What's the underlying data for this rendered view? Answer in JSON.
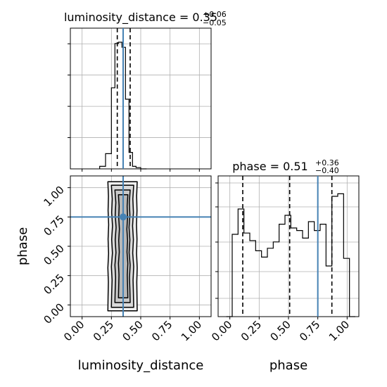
{
  "figure": {
    "type": "corner-plot",
    "truth_color": "#4682b4",
    "quantile_color": "#000000",
    "grid": true
  },
  "chart_data": [
    {
      "type": "bar",
      "panel": "histogram",
      "parameter": "luminosity_distance",
      "title": {
        "base": "luminosity_distance = 0.35",
        "sup": "+0.06",
        "sub": "−0.05"
      },
      "xlim": [
        -0.1,
        1.1
      ],
      "bin_edges": [
        0.15,
        0.2,
        0.25,
        0.28,
        0.31,
        0.34,
        0.37,
        0.4,
        0.43,
        0.46,
        0.5,
        0.55
      ],
      "values": [
        0.02,
        0.12,
        0.64,
        0.99,
        1.0,
        0.96,
        0.55,
        0.13,
        0.02,
        0.01,
        0.0
      ],
      "quantiles": [
        0.3,
        0.35,
        0.41
      ],
      "truth": 0.35,
      "xticks": [
        0.0,
        0.25,
        0.5,
        0.75,
        1.0
      ],
      "yticks_count": 4
    },
    {
      "type": "bar",
      "panel": "histogram",
      "parameter": "phase",
      "title": {
        "base": "phase = 0.51",
        "sup": "+0.36",
        "sub": "−0.40"
      },
      "xlim": [
        -0.1,
        1.1
      ],
      "bin_edges": [
        -0.03,
        0.02,
        0.07,
        0.12,
        0.17,
        0.22,
        0.27,
        0.32,
        0.37,
        0.42,
        0.47,
        0.52,
        0.57,
        0.62,
        0.67,
        0.72,
        0.77,
        0.82,
        0.87,
        0.92,
        0.97,
        1.02,
        1.07
      ],
      "values": [
        0.0,
        0.65,
        0.85,
        0.66,
        0.6,
        0.52,
        0.47,
        0.54,
        0.59,
        0.73,
        0.8,
        0.7,
        0.68,
        0.62,
        0.75,
        0.68,
        0.73,
        0.4,
        0.95,
        0.97,
        0.46,
        0.0
      ],
      "quantiles": [
        0.11,
        0.51,
        0.87
      ],
      "truth": 0.75,
      "xticks": [
        0.0,
        0.25,
        0.5,
        0.75,
        1.0
      ],
      "ytick_positions": [
        0.13,
        0.32,
        0.53,
        0.78,
        0.95
      ]
    },
    {
      "type": "scatter",
      "panel": "2d-density",
      "x_parameter": "luminosity_distance",
      "y_parameter": "phase",
      "xlim": [
        -0.1,
        1.1
      ],
      "ylim": [
        -0.1,
        1.1
      ],
      "truth": {
        "x": 0.35,
        "y": 0.75
      },
      "contour_bounds": [
        {
          "level": 1,
          "x": [
            0.22,
            0.47
          ],
          "y": [
            -0.05,
            1.05
          ]
        },
        {
          "level": 2,
          "x": [
            0.25,
            0.44
          ],
          "y": [
            -0.02,
            1.02
          ]
        },
        {
          "level": 3,
          "x": [
            0.28,
            0.41
          ],
          "y": [
            0.02,
            0.98
          ]
        },
        {
          "level": 4,
          "x": [
            0.31,
            0.39
          ],
          "y": [
            0.06,
            0.94
          ]
        }
      ],
      "xticks": [
        0.0,
        0.25,
        0.5,
        0.75,
        1.0
      ],
      "yticks": [
        0.0,
        0.25,
        0.5,
        0.75,
        1.0
      ]
    }
  ],
  "labels": {
    "x_lum": "luminosity_distance",
    "x_phase": "phase",
    "y_phase": "phase",
    "ticks": [
      "0.00",
      "0.25",
      "0.50",
      "0.75",
      "1.00"
    ]
  }
}
